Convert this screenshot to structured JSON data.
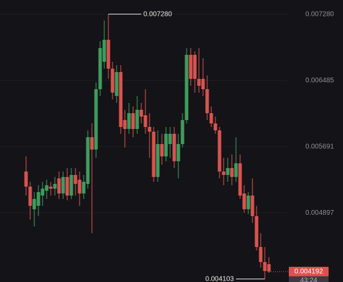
{
  "chart_data": {
    "type": "candlestick",
    "up_color": "#3e9c5c",
    "down_color": "#d9534f",
    "ylim": [
      0.004067,
      0.00745
    ],
    "yticks": [
      {
        "value": 0.00728,
        "label": "0.007280"
      },
      {
        "value": 0.006485,
        "label": "0.006485"
      },
      {
        "value": 0.005691,
        "label": "0.005691"
      },
      {
        "value": 0.004897,
        "label": "0.004897"
      }
    ],
    "open": [
      0.005392,
      0.005211,
      0.00494,
      0.004981,
      0.005104,
      0.005162,
      0.005211,
      0.005187,
      0.00531,
      0.005129,
      0.005327,
      0.005104,
      0.005351,
      0.005294,
      0.005129,
      0.005244,
      0.005804,
      0.005656,
      0.00638,
      0.006709,
      0.006973,
      0.006627,
      0.006298,
      0.006586,
      0.00601,
      0.005903,
      0.006092,
      0.005903,
      0.006133,
      0.006067,
      0.005927,
      0.00587,
      0.005327,
      0.005722,
      0.005574,
      0.005722,
      0.005845,
      0.005516,
      0.005722,
      0.00601,
      0.006792,
      0.006792,
      0.006504,
      0.006504,
      0.00638,
      0.006092,
      0.005969,
      0.005886,
      0.005392,
      0.005351,
      0.005434,
      0.005327,
      0.005491,
      0.005129,
      0.00494,
      0.005104,
      0.004858,
      0.004487,
      0.004306,
      0.004281
    ],
    "high": [
      0.005574,
      0.005269,
      0.005146,
      0.005228,
      0.005269,
      0.005294,
      0.005269,
      0.005327,
      0.005392,
      0.005392,
      0.005434,
      0.005434,
      0.005434,
      0.005392,
      0.005351,
      0.005886,
      0.005969,
      0.006462,
      0.006956,
      0.007203,
      0.00728,
      0.006709,
      0.006668,
      0.006668,
      0.006133,
      0.006215,
      0.006174,
      0.006298,
      0.006215,
      0.00638,
      0.006092,
      0.005927,
      0.005886,
      0.005845,
      0.005927,
      0.005927,
      0.005927,
      0.005845,
      0.006092,
      0.006874,
      0.006874,
      0.006833,
      0.006874,
      0.00675,
      0.006545,
      0.006174,
      0.006051,
      0.005927,
      0.005557,
      0.005557,
      0.005598,
      0.005804,
      0.005598,
      0.005228,
      0.005146,
      0.00531,
      0.004981,
      0.004652,
      0.004487,
      0.004364
    ],
    "low": [
      0.005104,
      0.004816,
      0.004734,
      0.004858,
      0.004981,
      0.005063,
      0.005104,
      0.005104,
      0.005063,
      0.005063,
      0.005047,
      0.005063,
      0.005104,
      0.004981,
      0.005063,
      0.005187,
      0.004652,
      0.005557,
      0.006298,
      0.006627,
      0.006504,
      0.006257,
      0.006215,
      0.005845,
      0.005681,
      0.005845,
      0.005804,
      0.005845,
      0.005969,
      0.005845,
      0.005557,
      0.005269,
      0.005269,
      0.005475,
      0.005516,
      0.005557,
      0.005434,
      0.00531,
      0.005681,
      0.005969,
      0.006421,
      0.006339,
      0.006339,
      0.006298,
      0.00601,
      0.005927,
      0.005845,
      0.00531,
      0.005228,
      0.005269,
      0.005228,
      0.005269,
      0.005063,
      0.004899,
      0.004882,
      0.004775,
      0.004446,
      0.00424,
      0.004103,
      0.004174
    ],
    "close": [
      0.005211,
      0.004981,
      0.005063,
      0.005146,
      0.005187,
      0.005228,
      0.005187,
      0.005244,
      0.005129,
      0.005327,
      0.005104,
      0.005351,
      0.005244,
      0.005129,
      0.005269,
      0.005804,
      0.005656,
      0.00638,
      0.006874,
      0.006973,
      0.006627,
      0.006339,
      0.006586,
      0.005927,
      0.005903,
      0.006092,
      0.005903,
      0.006133,
      0.006051,
      0.005927,
      0.00587,
      0.005327,
      0.005722,
      0.005574,
      0.005845,
      0.005845,
      0.005516,
      0.005722,
      0.00601,
      0.006792,
      0.006504,
      0.006504,
      0.006421,
      0.00638,
      0.006092,
      0.005969,
      0.005886,
      0.005392,
      0.005351,
      0.005434,
      0.005327,
      0.005491,
      0.005104,
      0.00494,
      0.005104,
      0.004858,
      0.004487,
      0.004306,
      0.004199,
      0.004192
    ],
    "max_marker": {
      "value": 0.00728,
      "label": "0.007280"
    },
    "min_marker": {
      "value": 0.004103,
      "label": "0.004103"
    },
    "last_price": {
      "value": 0.004192,
      "label": "0.004192"
    },
    "countdown": "43:24"
  }
}
